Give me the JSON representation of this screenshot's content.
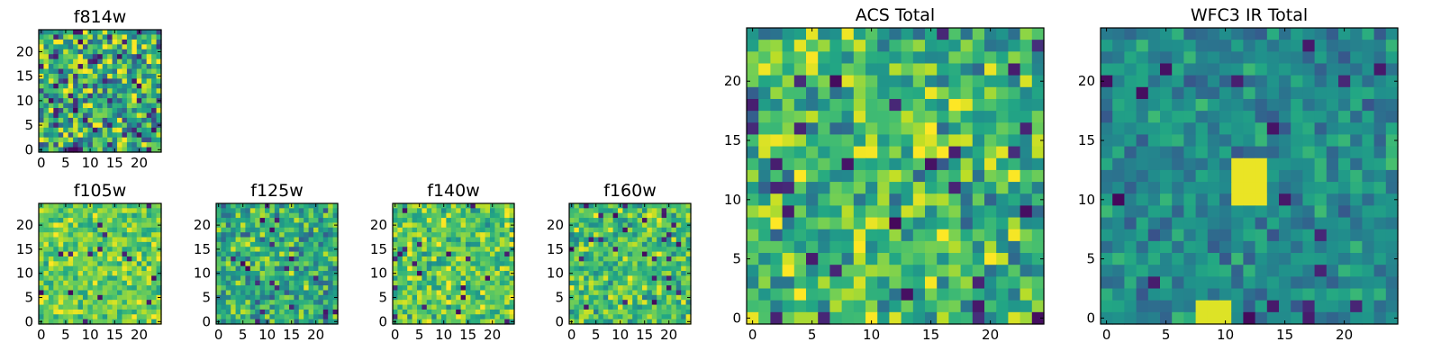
{
  "chart_data": [
    {
      "type": "heatmap",
      "title": "f814w",
      "grid": 25,
      "xlim": [
        0,
        24
      ],
      "ylim": [
        0,
        24
      ],
      "xticks": [
        "0",
        "5",
        "10",
        "15",
        "20"
      ],
      "yticks": [
        "0",
        "5",
        "10",
        "15",
        "20"
      ],
      "colormap": "viridis",
      "seed": 11,
      "bias": 0.62,
      "spread": 0.55,
      "dark_frac": 0.06,
      "blob": null
    },
    {
      "type": "heatmap",
      "title": "f105w",
      "grid": 25,
      "xlim": [
        0,
        24
      ],
      "ylim": [
        0,
        24
      ],
      "xticks": [
        "0",
        "5",
        "10",
        "15",
        "20"
      ],
      "yticks": [
        "0",
        "5",
        "10",
        "15",
        "20"
      ],
      "colormap": "viridis",
      "seed": 23,
      "bias": 0.78,
      "spread": 0.28,
      "dark_frac": 0.03,
      "blob": null
    },
    {
      "type": "heatmap",
      "title": "f125w",
      "grid": 25,
      "xlim": [
        0,
        24
      ],
      "ylim": [
        0,
        24
      ],
      "xticks": [
        "0",
        "5",
        "10",
        "15",
        "20"
      ],
      "yticks": [
        "0",
        "5",
        "10",
        "15",
        "20"
      ],
      "colormap": "viridis",
      "seed": 37,
      "bias": 0.62,
      "spread": 0.38,
      "dark_frac": 0.04,
      "blob": null
    },
    {
      "type": "heatmap",
      "title": "f140w",
      "grid": 25,
      "xlim": [
        0,
        24
      ],
      "ylim": [
        0,
        24
      ],
      "xticks": [
        "0",
        "5",
        "10",
        "15",
        "20"
      ],
      "yticks": [
        "0",
        "5",
        "10",
        "15",
        "20"
      ],
      "colormap": "viridis",
      "seed": 41,
      "bias": 0.74,
      "spread": 0.32,
      "dark_frac": 0.03,
      "blob": null
    },
    {
      "type": "heatmap",
      "title": "f160w",
      "grid": 25,
      "xlim": [
        0,
        24
      ],
      "ylim": [
        0,
        24
      ],
      "xticks": [
        "0",
        "5",
        "10",
        "15",
        "20"
      ],
      "yticks": [
        "0",
        "5",
        "10",
        "15",
        "20"
      ],
      "colormap": "viridis",
      "seed": 53,
      "bias": 0.7,
      "spread": 0.34,
      "dark_frac": 0.04,
      "blob": null
    },
    {
      "type": "heatmap",
      "title": "ACS Total",
      "grid": 25,
      "xlim": [
        0,
        24
      ],
      "ylim": [
        0,
        24
      ],
      "xticks": [
        "0",
        "5",
        "10",
        "15",
        "20"
      ],
      "yticks": [
        "0",
        "5",
        "10",
        "15",
        "20"
      ],
      "colormap": "viridis",
      "seed": 67,
      "bias": 0.68,
      "spread": 0.4,
      "dark_frac": 0.04,
      "blob": null
    },
    {
      "type": "heatmap",
      "title": "WFC3 IR Total",
      "grid": 25,
      "xlim": [
        0,
        24
      ],
      "ylim": [
        0,
        24
      ],
      "xticks": [
        "0",
        "5",
        "10",
        "15",
        "20"
      ],
      "yticks": [
        "0",
        "5",
        "10",
        "15",
        "20"
      ],
      "colormap": "viridis",
      "seed": 79,
      "bias": 0.48,
      "spread": 0.24,
      "dark_frac": 0.035,
      "blob": [
        {
          "x": [
            11,
            13
          ],
          "y": [
            10,
            13
          ],
          "value": 0.97
        },
        {
          "x": [
            8,
            10
          ],
          "y": [
            0,
            1
          ],
          "value": 0.95
        }
      ]
    }
  ]
}
